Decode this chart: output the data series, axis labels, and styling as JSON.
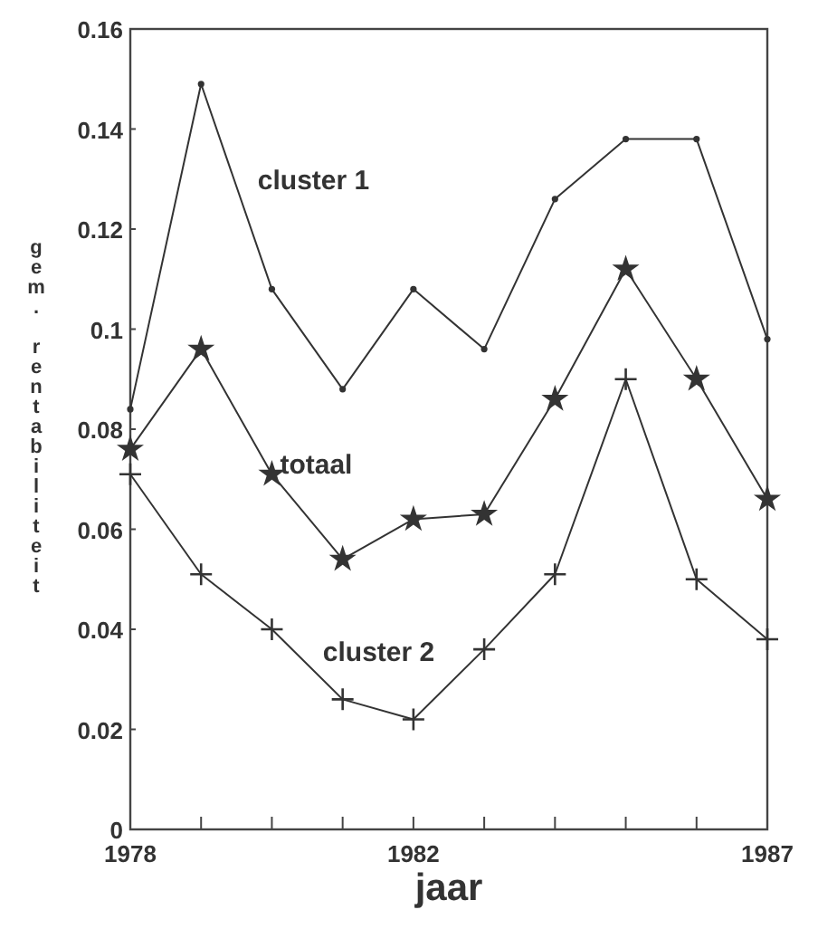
{
  "chart_data": {
    "type": "line",
    "xlabel": "jaar",
    "ylabel": "gem. rentabiliteit",
    "x": [
      1978,
      1979,
      1980,
      1981,
      1982,
      1983,
      1984,
      1985,
      1986,
      1987
    ],
    "xlim": [
      1978,
      1987
    ],
    "xticks": [
      1978,
      {
        "value": 1979,
        "label": null
      },
      {
        "value": 1980,
        "label": null
      },
      {
        "value": 1981,
        "label": null
      },
      1982,
      {
        "value": 1983,
        "label": null
      },
      {
        "value": 1984,
        "label": null
      },
      {
        "value": 1985,
        "label": null
      },
      {
        "value": 1986,
        "label": null
      },
      1987
    ],
    "ylim": [
      0,
      0.16
    ],
    "yticks": [
      0,
      0.02,
      0.04,
      0.06,
      0.08,
      0.1,
      0.12,
      0.14,
      0.16
    ],
    "grid": false,
    "line_style": "solid",
    "series": [
      {
        "name": "cluster 1",
        "color": "#333333",
        "marker": "circle",
        "values": [
          0.084,
          0.149,
          0.108,
          0.088,
          0.108,
          0.096,
          0.126,
          0.138,
          0.138,
          0.098
        ]
      },
      {
        "name": "totaal",
        "color": "#333333",
        "marker": "star",
        "values": [
          0.076,
          0.096,
          0.071,
          0.054,
          0.062,
          0.063,
          0.086,
          0.112,
          0.09,
          0.066
        ]
      },
      {
        "name": "cluster 2",
        "color": "#333333",
        "marker": "cross",
        "values": [
          0.071,
          0.051,
          0.04,
          0.026,
          0.022,
          0.036,
          0.051,
          0.09,
          0.05,
          0.038
        ]
      }
    ]
  }
}
